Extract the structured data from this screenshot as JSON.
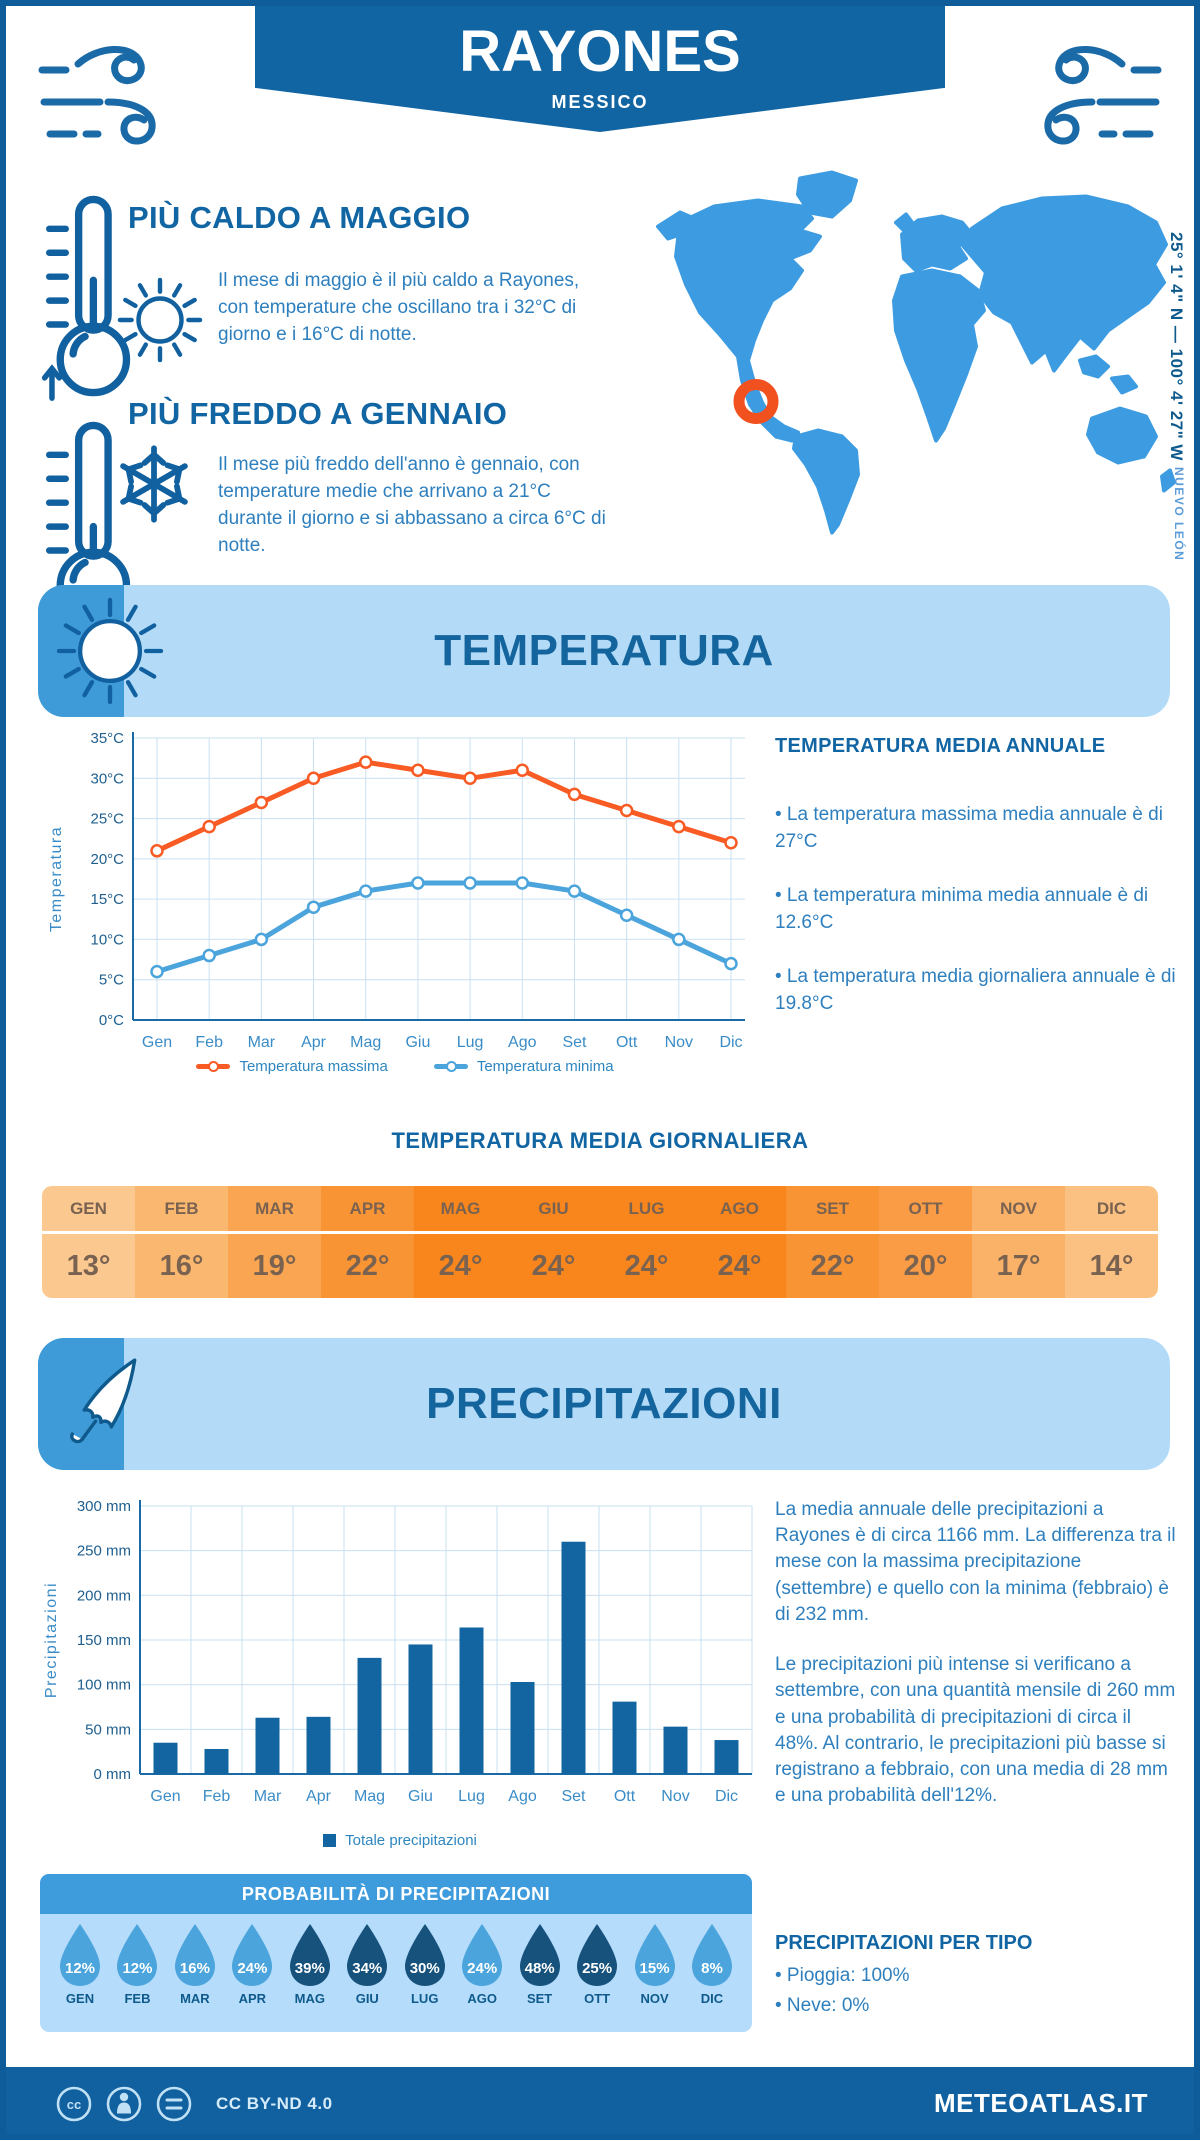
{
  "header": {
    "title": "RAYONES",
    "subtitle": "MESSICO"
  },
  "highlights": {
    "hot": {
      "title": "PIÙ CALDO A MAGGIO",
      "text": "Il mese di maggio è il più caldo a Rayones, con temperature che oscillano tra i 32°C di giorno e i 16°C di notte."
    },
    "cold": {
      "title": "PIÙ FREDDO A GENNAIO",
      "text": "Il mese più freddo dell'anno è gennaio, con temperature medie che arrivano a 21°C durante il giorno e si abbassano a circa 6°C di notte."
    }
  },
  "map": {
    "coordinates": "25° 1' 4\" N — 100° 4' 27\" W",
    "region": "NUEVO LEÓN"
  },
  "temperature": {
    "banner_title": "TEMPERATURA",
    "annual_title": "TEMPERATURA MEDIA ANNUALE",
    "annual_bullets": [
      "• La temperatura massima media annuale è di 27°C",
      "• La temperatura minima media annuale è di 12.6°C",
      "• La temperatura media giornaliera annuale è di 19.8°C"
    ],
    "daily_title": "TEMPERATURA MEDIA GIORNALIERA",
    "daily": {
      "months": [
        "GEN",
        "FEB",
        "MAR",
        "APR",
        "MAG",
        "GIU",
        "LUG",
        "AGO",
        "SET",
        "OTT",
        "NOV",
        "DIC"
      ],
      "values": [
        "13°",
        "16°",
        "19°",
        "22°",
        "24°",
        "24°",
        "24°",
        "24°",
        "22°",
        "20°",
        "17°",
        "14°"
      ],
      "colors": [
        "#FBC88F",
        "#FAB770",
        "#F9A551",
        "#F89434",
        "#F8861C",
        "#F8861C",
        "#F8861C",
        "#F8861C",
        "#F89434",
        "#F99C45",
        "#FAB168",
        "#FBC183"
      ]
    }
  },
  "precipitation": {
    "banner_title": "PRECIPITAZIONI",
    "paragraphs": [
      "La media annuale delle precipitazioni a Rayones è di circa 1166 mm. La differenza tra il mese con la massima precipitazione (settembre) e quello con la minima (febbraio) è di 232 mm.",
      "Le precipitazioni più intense si verificano a settembre, con una quantità mensile di 260 mm e una probabilità di precipitazioni di circa il 48%. Al contrario, le precipitazioni più basse si registrano a febbraio, con una media di 28 mm e una probabilità dell'12%."
    ],
    "probability": {
      "title": "PROBABILITÀ DI PRECIPITAZIONI",
      "months": [
        "GEN",
        "FEB",
        "MAR",
        "APR",
        "MAG",
        "GIU",
        "LUG",
        "AGO",
        "SET",
        "OTT",
        "NOV",
        "DIC"
      ],
      "values": [
        "12%",
        "12%",
        "16%",
        "24%",
        "39%",
        "34%",
        "30%",
        "24%",
        "48%",
        "25%",
        "15%",
        "8%"
      ],
      "dark": [
        false,
        false,
        false,
        false,
        true,
        true,
        true,
        false,
        true,
        true,
        false,
        false
      ],
      "drop_color_light": "#4BA4DC",
      "drop_color_dark": "#17527D"
    },
    "by_type": {
      "title": "PRECIPITAZIONI PER TIPO",
      "bullets": [
        "• Pioggia: 100%",
        "• Neve: 0%"
      ]
    }
  },
  "footer": {
    "license": "CC BY-ND 4.0",
    "site": "METEOATLAS.IT"
  },
  "colors": {
    "header_banner": "#1165A3",
    "section_banner_bg": "#B3DBF8",
    "section_icon_bg": "#3F9BD8",
    "map_land": "#3D9CE1",
    "map_marker": "#F1501F",
    "footer_bg": "#11609F",
    "body_text": "#2E7FBE",
    "heading_text": "#1165A3"
  },
  "chart_data": [
    {
      "type": "line",
      "title": "Temperatura",
      "categories": [
        "Gen",
        "Feb",
        "Mar",
        "Apr",
        "Mag",
        "Giu",
        "Lug",
        "Ago",
        "Set",
        "Ott",
        "Nov",
        "Dic"
      ],
      "series": [
        {
          "name": "Temperatura massima",
          "color": "#F95B25",
          "values": [
            21,
            24,
            27,
            30,
            32,
            31,
            30,
            31,
            28,
            26,
            24,
            22
          ]
        },
        {
          "name": "Temperatura minima",
          "color": "#4BA4DC",
          "values": [
            6,
            8,
            10,
            14,
            16,
            17,
            17,
            17,
            16,
            13,
            10,
            7
          ]
        }
      ],
      "xlabel": "",
      "ylabel": "Temperatura",
      "ylim": [
        0,
        35
      ],
      "ytick_step": 5,
      "ytick_suffix": "°C",
      "grid": true,
      "legend_position": "bottom"
    },
    {
      "type": "bar",
      "title": "Precipitazioni",
      "categories": [
        "Gen",
        "Feb",
        "Mar",
        "Apr",
        "Mag",
        "Giu",
        "Lug",
        "Ago",
        "Set",
        "Ott",
        "Nov",
        "Dic"
      ],
      "series": [
        {
          "name": "Totale precipitazioni",
          "color": "#1265A0",
          "values": [
            35,
            28,
            63,
            64,
            130,
            145,
            164,
            103,
            260,
            81,
            53,
            38
          ]
        }
      ],
      "xlabel": "",
      "ylabel": "Precipitazioni",
      "ylim": [
        0,
        300
      ],
      "ytick_step": 50,
      "ytick_suffix": " mm",
      "grid": true,
      "legend_position": "bottom"
    }
  ]
}
